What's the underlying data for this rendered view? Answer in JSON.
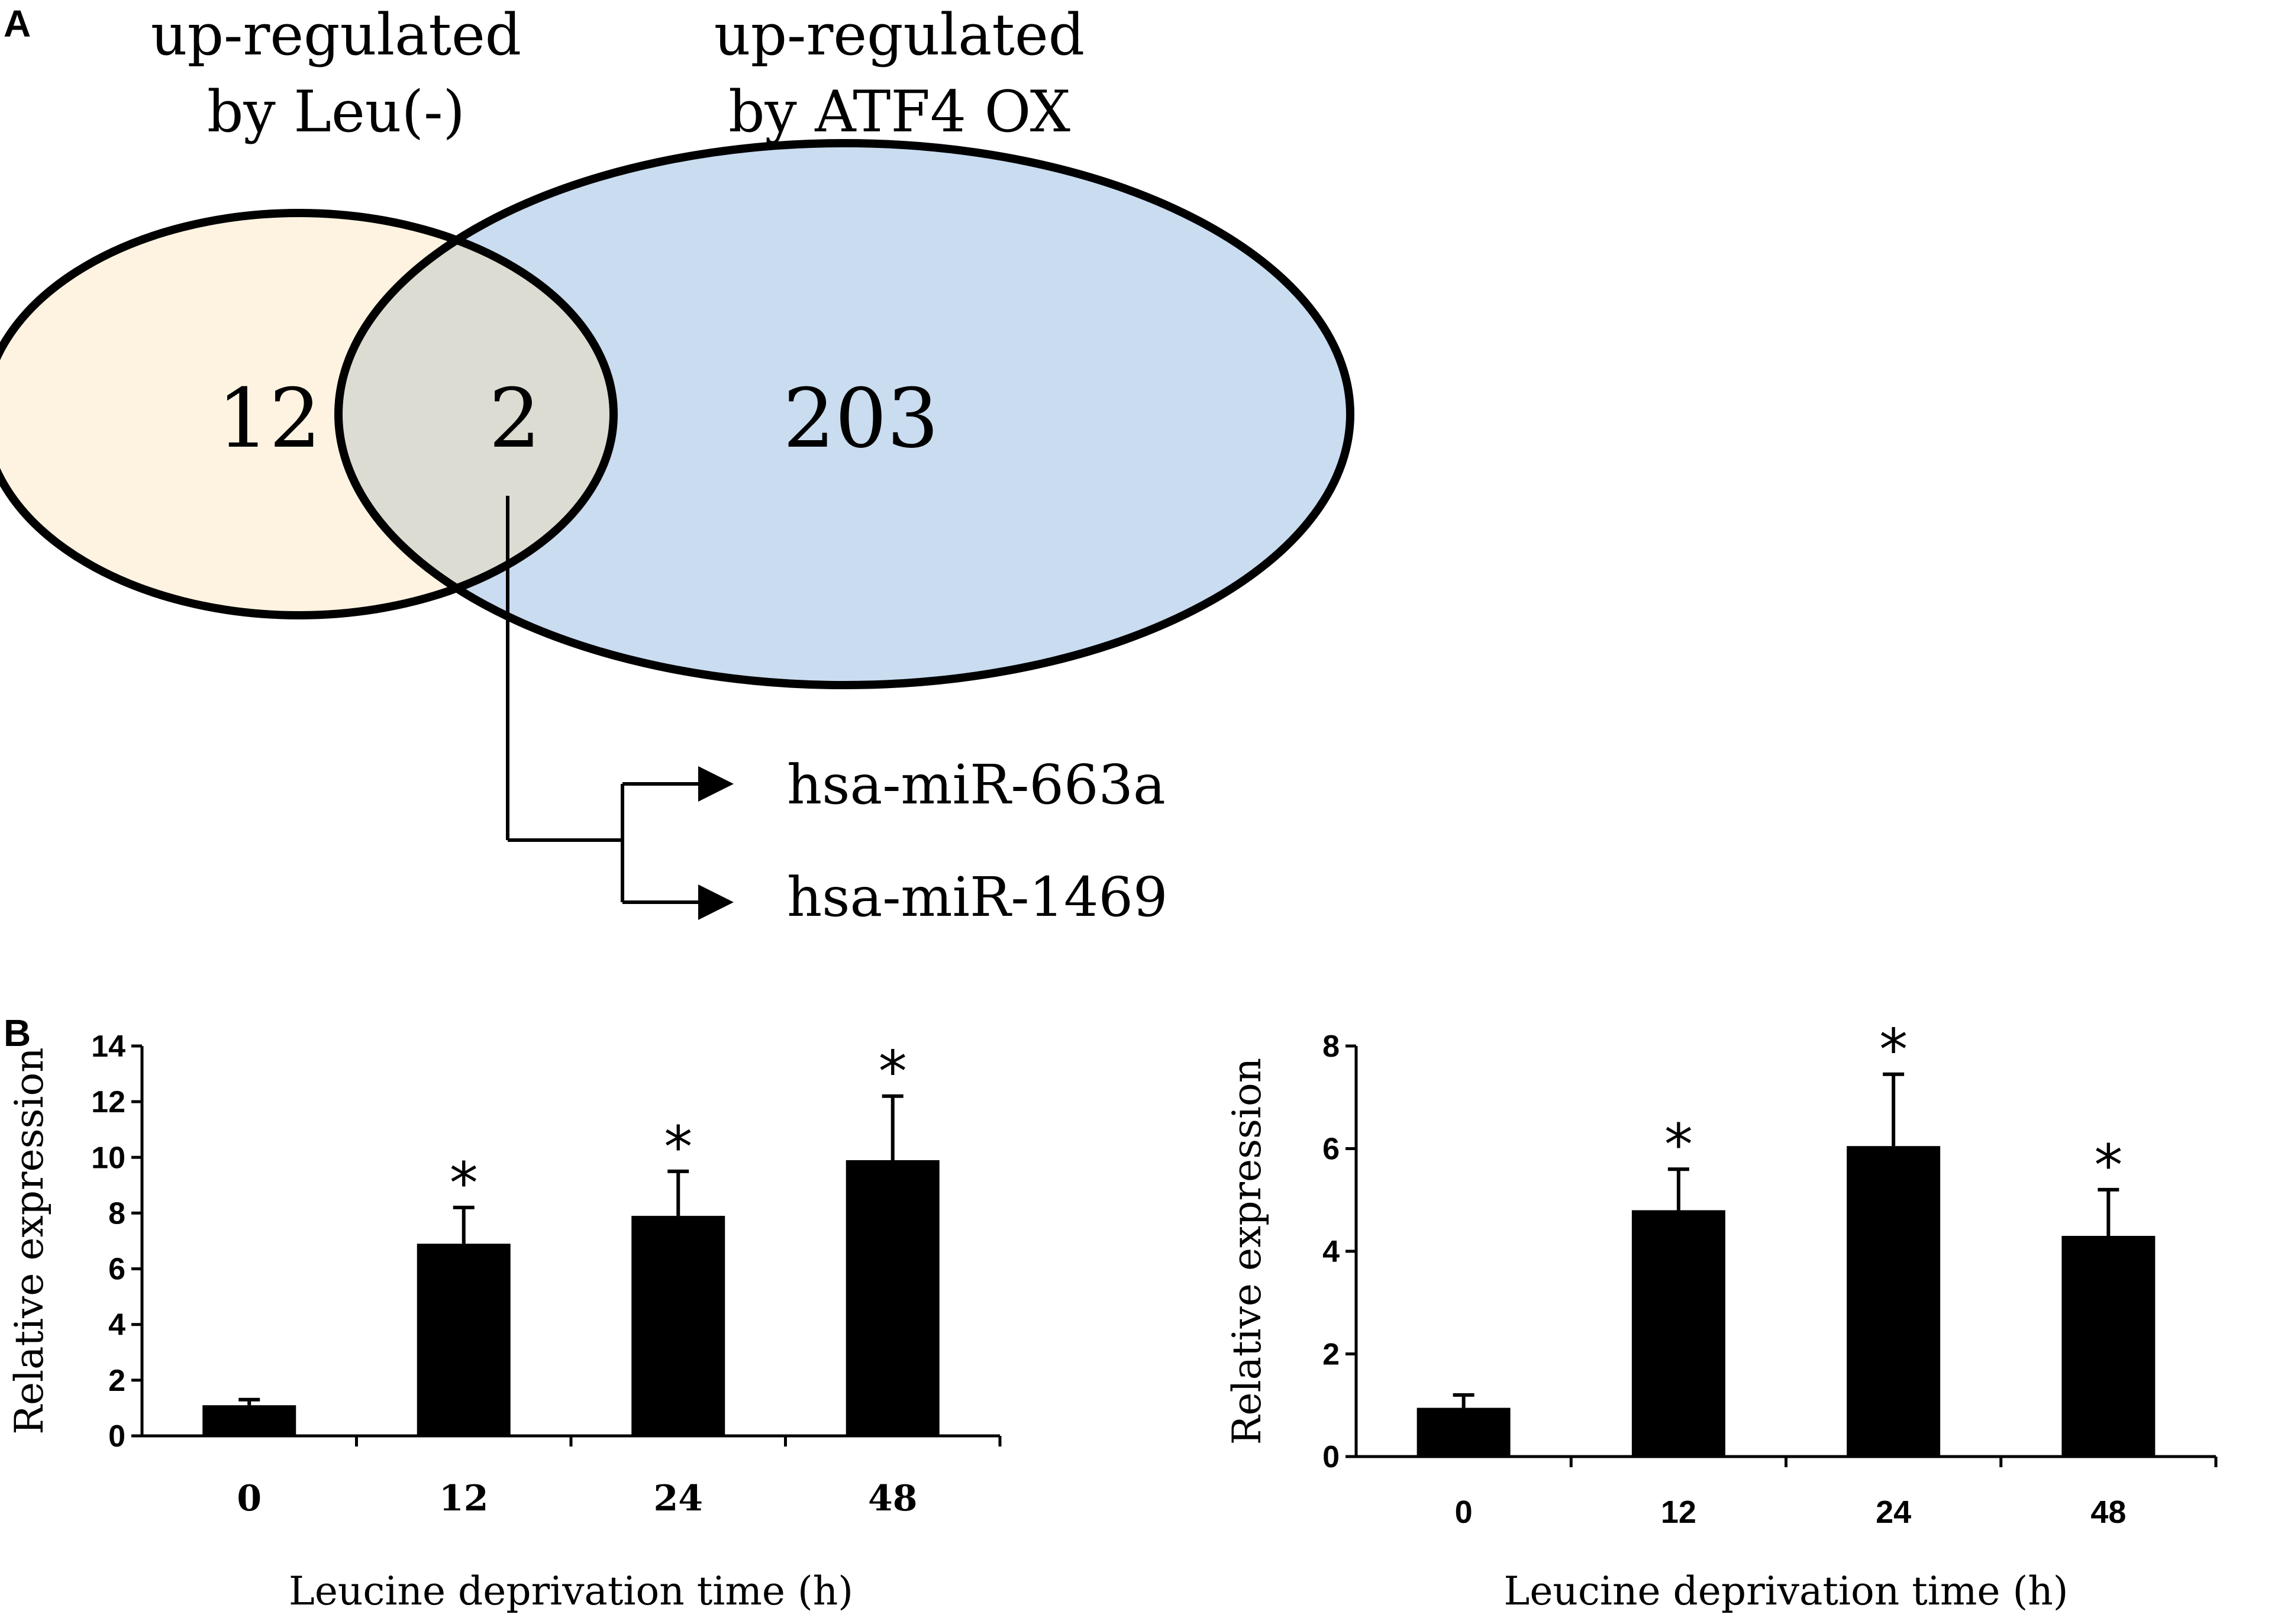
{
  "panels": {
    "a": "A",
    "b": "B"
  },
  "venn": {
    "left_label_line1": "up-regulated",
    "left_label_line2": "by Leu(-)",
    "right_label_line1": "up-regulated",
    "right_label_line2": "by ATF4 OX",
    "left_only": "12",
    "overlap": "2",
    "right_only": "203",
    "left_fill": "#fdf3e0",
    "right_fill": "#c9dcf0",
    "overlap_fill": "#dcdcd2",
    "overlap_genes": [
      "hsa-miR-663a",
      "hsa-miR-1469"
    ]
  },
  "chart_data": [
    {
      "type": "bar",
      "title": "",
      "xlabel": "Leucine deprivation  time (h)",
      "ylabel": "Relative expression",
      "categories": [
        "0",
        "12",
        "24",
        "48"
      ],
      "values": [
        1.1,
        6.9,
        7.9,
        9.9
      ],
      "error": [
        0.2,
        1.3,
        1.6,
        2.3
      ],
      "significance": [
        "",
        "*",
        "*",
        "*"
      ],
      "ylim": [
        0,
        14
      ],
      "yticks": [
        "0",
        "2",
        "4",
        "6",
        "8",
        "10",
        "12",
        "14"
      ],
      "bar_color": "#000000",
      "grid": false
    },
    {
      "type": "bar",
      "title": "",
      "xlabel": "Leucine deprivation  time (h)",
      "ylabel": "Relative expression",
      "categories": [
        "0",
        "12",
        "24",
        "48"
      ],
      "values": [
        0.95,
        4.8,
        6.05,
        4.3
      ],
      "error": [
        0.25,
        0.8,
        1.4,
        0.9
      ],
      "significance": [
        "",
        "*",
        "*",
        "*"
      ],
      "ylim": [
        0,
        8
      ],
      "yticks": [
        "0",
        "2",
        "4",
        "6",
        "8"
      ],
      "bar_color": "#000000",
      "grid": false
    }
  ]
}
